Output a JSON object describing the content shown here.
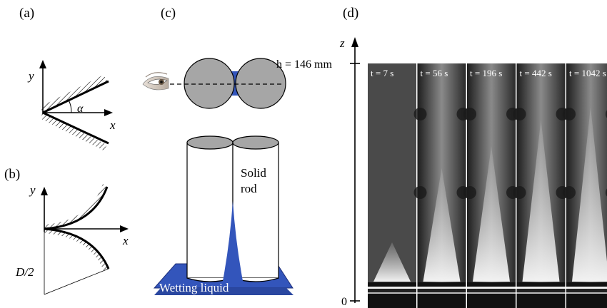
{
  "panels": {
    "a": {
      "label": "(a)",
      "axis_y": "y",
      "axis_x": "x",
      "angle": "α"
    },
    "b": {
      "label": "(b)",
      "axis_y": "y",
      "axis_x": "x",
      "radius": "D/2"
    },
    "c": {
      "label": "(c)",
      "rod_label_1": "Solid",
      "rod_label_2": "rod",
      "liquid_label": "Wetting liquid"
    },
    "d": {
      "label": "(d)",
      "axis_z": "z",
      "height_label": "h = 146 mm",
      "zero_label": "0",
      "frames": [
        {
          "time": "t = 7 s"
        },
        {
          "time": "t = 56 s"
        },
        {
          "time": "t = 196 s"
        },
        {
          "time": "t = 442 s"
        },
        {
          "time": "t = 1042 s"
        }
      ]
    }
  },
  "colors": {
    "liquid": "#3355bb",
    "rod_fill": "#a6a6a6",
    "frame_bg": "#2a2a2a"
  }
}
